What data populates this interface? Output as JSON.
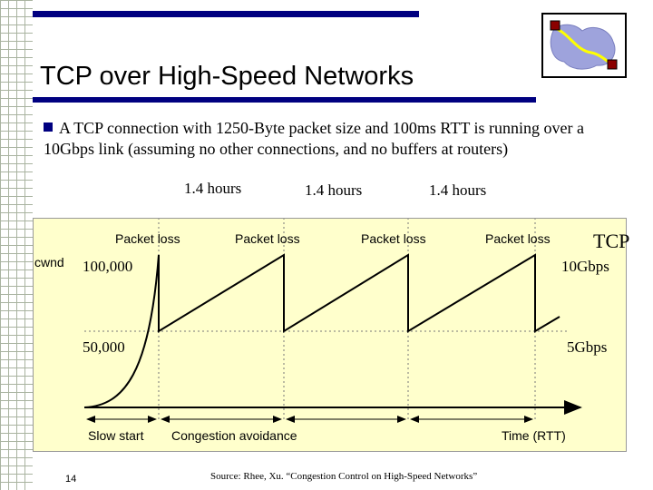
{
  "slide": {
    "title": "TCP over High-Speed Networks",
    "bullet": "A TCP connection with 1250-Byte packet size and 100ms RTT is running over a 10Gbps link (assuming no other connections, and no buffers at routers)",
    "page_number": "14",
    "source": "Source: Rhee, Xu. “Congestion Control on High-Speed Networks”"
  },
  "hours_labels": [
    "1.4 hours",
    "1.4 hours",
    "1.4 hours"
  ],
  "diagram": {
    "ylabel": "cwnd",
    "xlabel": "Time (RTT)",
    "y_ticks": [
      "100,000",
      "50,000"
    ],
    "right_labels": [
      "TCP",
      "10Gbps",
      "5Gbps"
    ],
    "packet_loss_labels": [
      "Packet loss",
      "Packet loss",
      "Packet loss",
      "Packet loss"
    ],
    "phases": [
      "Slow start",
      "Congestion avoidance"
    ],
    "colors": {
      "curve": "#000000",
      "background": "#ffffcc",
      "accent": "#000080"
    }
  }
}
